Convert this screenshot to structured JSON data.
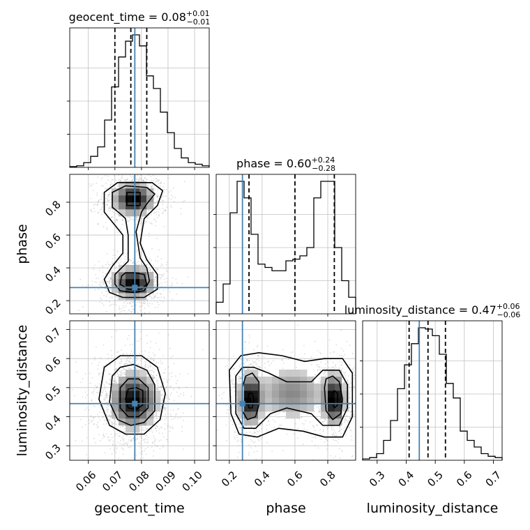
{
  "chart_data": {
    "type": "corner",
    "colors": {
      "truth": "#4682b4",
      "hist": "#000000",
      "quantile": "#000000",
      "grid": "#c0c0c0",
      "points": "#9a9a9a"
    },
    "params": [
      {
        "name": "geocent_time",
        "truth": 0.0775,
        "title": {
          "prefix": "geocent_time = ",
          "median": "0.08",
          "plus": "+0.01",
          "minus": "−0.01"
        },
        "quantiles": [
          0.07,
          0.076,
          0.082
        ]
      },
      {
        "name": "phase",
        "truth": 0.28,
        "title": {
          "prefix": "phase = ",
          "median": "0.60",
          "plus": "+0.24",
          "minus": "−0.28"
        },
        "quantiles": [
          0.32,
          0.6,
          0.84
        ]
      },
      {
        "name": "luminosity_distance",
        "truth": 0.445,
        "title": {
          "prefix": "luminosity_distance = ",
          "median": "0.47",
          "plus": "+0.06",
          "minus": "−0.06"
        },
        "quantiles": [
          0.41,
          0.475,
          0.535
        ]
      }
    ],
    "hists": {
      "geocent_time": {
        "range": [
          0.053,
          0.1055
        ],
        "edges_step": 0.002625,
        "counts": [
          0.5,
          1,
          3,
          7,
          13,
          30,
          51,
          70,
          80,
          84,
          77,
          58,
          50,
          35,
          22,
          12,
          6,
          3,
          2,
          1
        ]
      },
      "phase": {
        "range": [
          0.12,
          0.97
        ],
        "edges_step": 0.0425,
        "counts": [
          7,
          18,
          61,
          80,
          70,
          48,
          30,
          28,
          26,
          26,
          32,
          33,
          35,
          40,
          70,
          80,
          80,
          40,
          20,
          10
        ]
      },
      "luminosity_distance": {
        "range": [
          0.25,
          0.73
        ],
        "edges_step": 0.024,
        "counts": [
          1,
          2,
          5,
          15,
          30,
          54,
          72,
          88,
          100,
          99,
          94,
          80,
          58,
          47,
          22,
          15,
          10,
          5,
          3,
          2
        ]
      }
    },
    "pairs": [
      {
        "x": "geocent_time",
        "y": "phase",
        "blobs": [
          {
            "mx": 0.077,
            "my": 0.82,
            "sx": 0.004,
            "sy": 0.05,
            "w": 1.0
          },
          {
            "mx": 0.077,
            "my": 0.31,
            "sx": 0.004,
            "sy": 0.05,
            "w": 1.0
          }
        ],
        "contours": [
          [
            [
              0.0745,
              0.78
            ],
            [
              0.0745,
              0.86
            ],
            [
              0.0795,
              0.86
            ],
            [
              0.0795,
              0.78
            ]
          ],
          [
            [
              0.0725,
              0.35
            ],
            [
              0.072,
              0.3
            ],
            [
              0.075,
              0.27
            ],
            [
              0.08,
              0.27
            ],
            [
              0.082,
              0.3
            ],
            [
              0.081,
              0.36
            ],
            [
              0.0775,
              0.37
            ],
            [
              0.074,
              0.37
            ]
          ],
          [
            [
              0.072,
              0.73
            ],
            [
              0.069,
              0.77
            ],
            [
              0.069,
              0.86
            ],
            [
              0.074,
              0.9
            ],
            [
              0.082,
              0.89
            ],
            [
              0.085,
              0.85
            ],
            [
              0.082,
              0.79
            ],
            [
              0.08,
              0.74
            ],
            [
              0.078,
              0.62
            ],
            [
              0.0795,
              0.46
            ],
            [
              0.082,
              0.4
            ],
            [
              0.083,
              0.32
            ],
            [
              0.081,
              0.26
            ],
            [
              0.077,
              0.25
            ],
            [
              0.072,
              0.26
            ],
            [
              0.07,
              0.3
            ],
            [
              0.07,
              0.36
            ],
            [
              0.075,
              0.44
            ],
            [
              0.075,
              0.6
            ],
            [
              0.074,
              0.7
            ]
          ],
          [
            [
              0.0705,
              0.65
            ],
            [
              0.066,
              0.74
            ],
            [
              0.066,
              0.86
            ],
            [
              0.071,
              0.92
            ],
            [
              0.084,
              0.92
            ],
            [
              0.088,
              0.87
            ],
            [
              0.086,
              0.78
            ],
            [
              0.081,
              0.7
            ],
            [
              0.0795,
              0.55
            ],
            [
              0.082,
              0.45
            ],
            [
              0.086,
              0.36
            ],
            [
              0.086,
              0.27
            ],
            [
              0.081,
              0.22
            ],
            [
              0.073,
              0.22
            ],
            [
              0.068,
              0.25
            ],
            [
              0.066,
              0.33
            ],
            [
              0.069,
              0.41
            ],
            [
              0.073,
              0.49
            ],
            [
              0.073,
              0.6
            ]
          ]
        ]
      },
      {
        "x": "geocent_time",
        "y": "luminosity_distance",
        "blobs": [
          {
            "mx": 0.077,
            "my": 0.455,
            "sx": 0.0045,
            "sy": 0.05,
            "w": 1.0
          }
        ],
        "contours": [
          [
            [
              0.074,
              0.46
            ],
            [
              0.075,
              0.43
            ],
            [
              0.078,
              0.425
            ],
            [
              0.0805,
              0.44
            ],
            [
              0.0805,
              0.49
            ],
            [
              0.078,
              0.5
            ],
            [
              0.075,
              0.495
            ]
          ],
          [
            [
              0.072,
              0.5
            ],
            [
              0.072,
              0.43
            ],
            [
              0.075,
              0.4
            ],
            [
              0.079,
              0.4
            ],
            [
              0.0825,
              0.43
            ],
            [
              0.0825,
              0.5
            ],
            [
              0.079,
              0.53
            ],
            [
              0.075,
              0.53
            ]
          ],
          [
            [
              0.069,
              0.54
            ],
            [
              0.068,
              0.45
            ],
            [
              0.071,
              0.39
            ],
            [
              0.076,
              0.37
            ],
            [
              0.081,
              0.38
            ],
            [
              0.085,
              0.42
            ],
            [
              0.085,
              0.51
            ],
            [
              0.082,
              0.56
            ],
            [
              0.077,
              0.58
            ],
            [
              0.072,
              0.57
            ]
          ],
          [
            [
              0.066,
              0.57
            ],
            [
              0.064,
              0.46
            ],
            [
              0.068,
              0.37
            ],
            [
              0.074,
              0.34
            ],
            [
              0.081,
              0.34
            ],
            [
              0.087,
              0.39
            ],
            [
              0.089,
              0.48
            ],
            [
              0.086,
              0.57
            ],
            [
              0.08,
              0.61
            ],
            [
              0.072,
              0.61
            ]
          ]
        ]
      },
      {
        "x": "phase",
        "y": "luminosity_distance",
        "blobs": [
          {
            "mx": 0.33,
            "my": 0.46,
            "sx": 0.035,
            "sy": 0.045,
            "w": 1.0
          },
          {
            "mx": 0.84,
            "my": 0.46,
            "sx": 0.035,
            "sy": 0.045,
            "w": 1.0
          },
          {
            "mx": 0.58,
            "my": 0.48,
            "sx": 0.12,
            "sy": 0.05,
            "w": 0.35
          }
        ],
        "contours": [
          [
            [
              0.31,
              0.45
            ],
            [
              0.32,
              0.43
            ],
            [
              0.34,
              0.43
            ],
            [
              0.35,
              0.46
            ],
            [
              0.34,
              0.48
            ],
            [
              0.32,
              0.48
            ]
          ],
          [
            [
              0.82,
              0.46
            ],
            [
              0.84,
              0.43
            ],
            [
              0.86,
              0.44
            ],
            [
              0.86,
              0.48
            ],
            [
              0.84,
              0.49
            ],
            [
              0.83,
              0.48
            ]
          ],
          [
            [
              0.28,
              0.5
            ],
            [
              0.28,
              0.42
            ],
            [
              0.31,
              0.39
            ],
            [
              0.36,
              0.4
            ],
            [
              0.38,
              0.44
            ],
            [
              0.38,
              0.52
            ],
            [
              0.34,
              0.55
            ],
            [
              0.3,
              0.54
            ]
          ],
          [
            [
              0.78,
              0.5
            ],
            [
              0.79,
              0.42
            ],
            [
              0.83,
              0.39
            ],
            [
              0.88,
              0.41
            ],
            [
              0.89,
              0.46
            ],
            [
              0.87,
              0.52
            ],
            [
              0.83,
              0.54
            ],
            [
              0.79,
              0.53
            ]
          ],
          [
            [
              0.24,
              0.54
            ],
            [
              0.24,
              0.41
            ],
            [
              0.29,
              0.36
            ],
            [
              0.36,
              0.36
            ],
            [
              0.45,
              0.41
            ],
            [
              0.55,
              0.43
            ],
            [
              0.7,
              0.41
            ],
            [
              0.77,
              0.37
            ],
            [
              0.87,
              0.37
            ],
            [
              0.92,
              0.43
            ],
            [
              0.92,
              0.51
            ],
            [
              0.87,
              0.56
            ],
            [
              0.77,
              0.56
            ],
            [
              0.7,
              0.52
            ],
            [
              0.55,
              0.52
            ],
            [
              0.44,
              0.55
            ],
            [
              0.35,
              0.57
            ],
            [
              0.28,
              0.57
            ]
          ],
          [
            [
              0.2,
              0.56
            ],
            [
              0.21,
              0.41
            ],
            [
              0.26,
              0.34
            ],
            [
              0.37,
              0.33
            ],
            [
              0.5,
              0.36
            ],
            [
              0.65,
              0.35
            ],
            [
              0.78,
              0.33
            ],
            [
              0.89,
              0.33
            ],
            [
              0.95,
              0.4
            ],
            [
              0.95,
              0.55
            ],
            [
              0.89,
              0.6
            ],
            [
              0.78,
              0.6
            ],
            [
              0.66,
              0.59
            ],
            [
              0.52,
              0.61
            ],
            [
              0.38,
              0.62
            ],
            [
              0.27,
              0.61
            ]
          ]
        ]
      }
    ],
    "axes": {
      "geocent_time": {
        "range": [
          0.053,
          0.1055
        ],
        "ticks": [
          0.06,
          0.07,
          0.08,
          0.09,
          0.1
        ],
        "labels": [
          "0.06",
          "0.07",
          "0.08",
          "0.09",
          "0.10"
        ]
      },
      "phase": {
        "range": [
          0.12,
          0.97
        ],
        "ticks": [
          0.2,
          0.4,
          0.6,
          0.8
        ],
        "labels": [
          "0.2",
          "0.4",
          "0.6",
          "0.8"
        ]
      },
      "luminosity_distance": {
        "range": [
          0.25,
          0.73
        ],
        "ticks": [
          0.3,
          0.4,
          0.5,
          0.6,
          0.7
        ],
        "labels": [
          "0.3",
          "0.4",
          "0.5",
          "0.6",
          "0.7"
        ]
      }
    }
  }
}
